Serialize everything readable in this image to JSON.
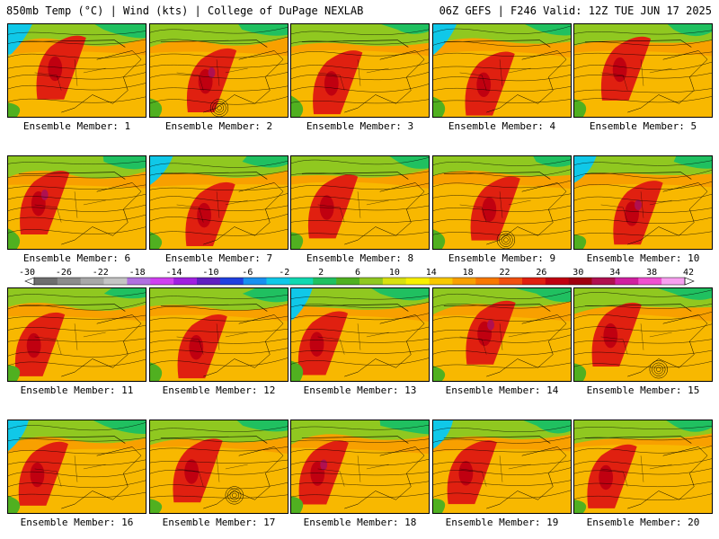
{
  "header": {
    "left_title": "850mb Temp (°C) | Wind (kts) | College of DuPage NEXLAB",
    "right_title": "06Z GEFS | F246 Valid: 12Z TUE JUN 17 2025"
  },
  "caption_prefix": "Ensemble Member:",
  "members": [
    {
      "number": "1",
      "caption": "Ensemble Member: 1"
    },
    {
      "number": "2",
      "caption": "Ensemble Member: 2"
    },
    {
      "number": "3",
      "caption": "Ensemble Member: 3"
    },
    {
      "number": "4",
      "caption": "Ensemble Member: 4"
    },
    {
      "number": "5",
      "caption": "Ensemble Member: 5"
    },
    {
      "number": "6",
      "caption": "Ensemble Member: 6"
    },
    {
      "number": "7",
      "caption": "Ensemble Member: 7"
    },
    {
      "number": "8",
      "caption": "Ensemble Member: 8"
    },
    {
      "number": "9",
      "caption": "Ensemble Member: 9"
    },
    {
      "number": "10",
      "caption": "Ensemble Member: 10"
    },
    {
      "number": "11",
      "caption": "Ensemble Member: 11"
    },
    {
      "number": "12",
      "caption": "Ensemble Member: 12"
    },
    {
      "number": "13",
      "caption": "Ensemble Member: 13"
    },
    {
      "number": "14",
      "caption": "Ensemble Member: 14"
    },
    {
      "number": "15",
      "caption": "Ensemble Member: 15"
    },
    {
      "number": "16",
      "caption": "Ensemble Member: 16"
    },
    {
      "number": "17",
      "caption": "Ensemble Member: 17"
    },
    {
      "number": "18",
      "caption": "Ensemble Member: 18"
    },
    {
      "number": "19",
      "caption": "Ensemble Member: 19"
    },
    {
      "number": "20",
      "caption": "Ensemble Member: 20"
    }
  ],
  "colorbar": {
    "labels": [
      "-30",
      "-26",
      "-22",
      "-18",
      "-14",
      "-10",
      "-6",
      "-2",
      "2",
      "6",
      "10",
      "14",
      "18",
      "22",
      "26",
      "30",
      "34",
      "38",
      "42"
    ],
    "colors": [
      "#6e6e6e",
      "#8c8c8c",
      "#a8a8a8",
      "#c4c4c4",
      "#b070e0",
      "#d040f0",
      "#a020e0",
      "#6020c0",
      "#2040e0",
      "#1890f0",
      "#10c8e8",
      "#10d8b0",
      "#20c060",
      "#50b020",
      "#90c820",
      "#d8e010",
      "#f8f000",
      "#f8c800",
      "#f8a000",
      "#f87800",
      "#f05010",
      "#e02010",
      "#c00010",
      "#a00010",
      "#b01050",
      "#d020a0",
      "#f050d0",
      "#f8a0f0"
    ]
  }
}
